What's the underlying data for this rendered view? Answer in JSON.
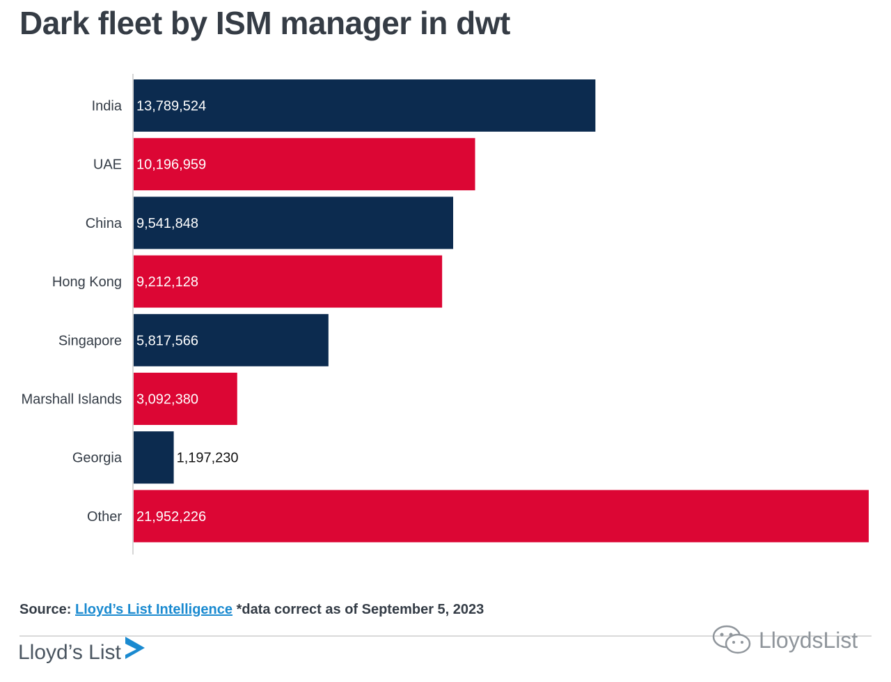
{
  "title": "Dark fleet by ISM manager in dwt",
  "chart_data": {
    "type": "bar",
    "orientation": "horizontal",
    "categories": [
      "India",
      "UAE",
      "China",
      "Hong Kong",
      "Singapore",
      "Marshall Islands",
      "Georgia",
      "Other"
    ],
    "values": [
      13789524,
      10196959,
      9541848,
      9212128,
      5817566,
      3092380,
      1197230,
      21952226
    ],
    "value_labels": [
      "13,789,524",
      "10,196,959",
      "9,541,848",
      "9,212,128",
      "5,817,566",
      "3,092,380",
      "1,197,230",
      "21,952,226"
    ],
    "colors": [
      "#0c2b4f",
      "#dc0634",
      "#0c2b4f",
      "#dc0634",
      "#0c2b4f",
      "#dc0634",
      "#0c2b4f",
      "#dc0634"
    ],
    "xlim": [
      0,
      21952226
    ],
    "grid": false,
    "legend": "none"
  },
  "source": {
    "prefix": "Source:",
    "link_text": "Lloyd’s List Intelligence",
    "note": "*data correct as of September 5, 2023"
  },
  "brand": {
    "logo_text": "Lloyd’s List",
    "logo_icon": "play-arrow-logo-icon"
  },
  "watermark": {
    "text": "LloydsList",
    "icon": "wechat-icon"
  }
}
